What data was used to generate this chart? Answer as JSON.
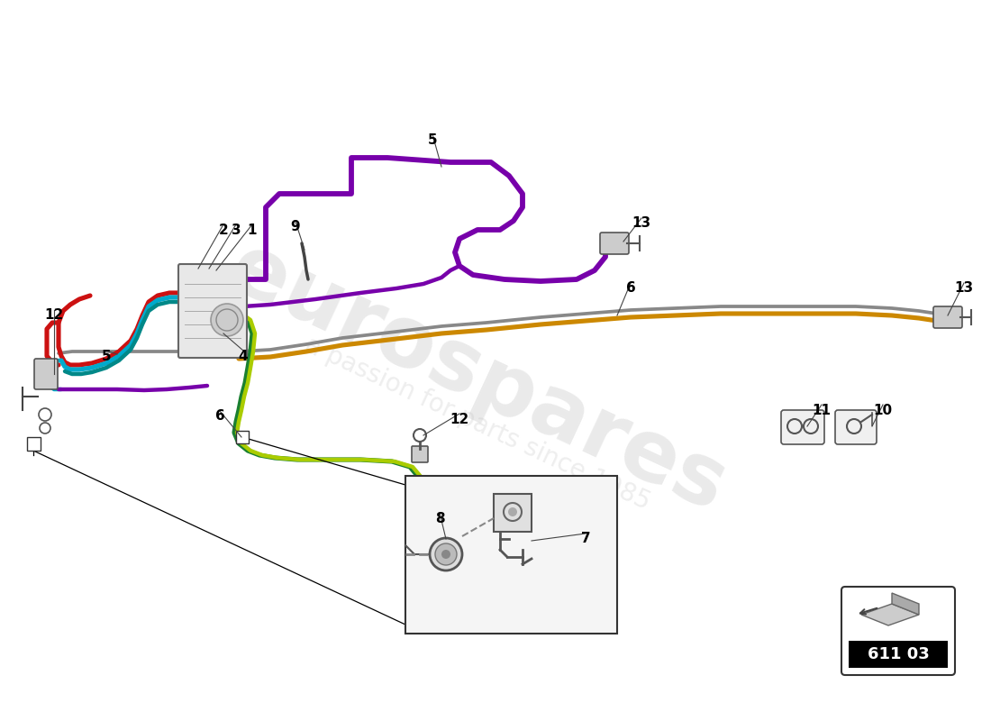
{
  "background_color": "#ffffff",
  "part_code": "611 03",
  "watermark1": "eurospares",
  "watermark2": "a passion for parts since 1985",
  "colors": {
    "red": "#cc1111",
    "cyan": "#00aacc",
    "teal": "#008888",
    "green": "#1a8030",
    "yellow_green": "#aacc00",
    "purple": "#7700aa",
    "orange": "#cc8800",
    "gray": "#888888",
    "dark_gray": "#444444",
    "light_gray": "#bbbbbb",
    "black": "#111111",
    "white": "#ffffff",
    "component_fill": "#e8e8e8",
    "component_edge": "#666666"
  }
}
